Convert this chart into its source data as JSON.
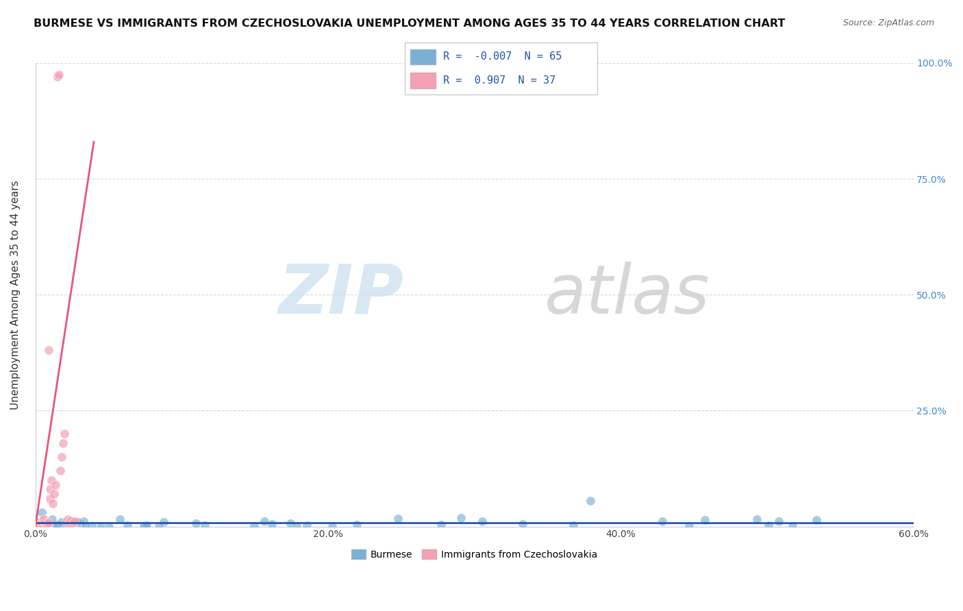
{
  "title": "BURMESE VS IMMIGRANTS FROM CZECHOSLOVAKIA UNEMPLOYMENT AMONG AGES 35 TO 44 YEARS CORRELATION CHART",
  "source": "Source: ZipAtlas.com",
  "ylabel": "Unemployment Among Ages 35 to 44 years",
  "xlim": [
    0.0,
    0.6
  ],
  "ylim": [
    0.0,
    1.0
  ],
  "xtick_labels": [
    "0.0%",
    "20.0%",
    "40.0%",
    "60.0%"
  ],
  "xtick_vals": [
    0.0,
    0.2,
    0.4,
    0.6
  ],
  "ytick_labels": [
    "25.0%",
    "50.0%",
    "75.0%",
    "100.0%"
  ],
  "ytick_vals": [
    0.25,
    0.5,
    0.75,
    1.0
  ],
  "watermark_zip": "ZIP",
  "watermark_atlas": "atlas",
  "blue_color": "#7BAFD4",
  "pink_color": "#F4A0B5",
  "blue_line_color": "#2255AA",
  "pink_line_color": "#E8547A",
  "R_blue": -0.007,
  "N_blue": 65,
  "R_pink": 0.907,
  "N_pink": 37,
  "blue_seed": 42,
  "pink_seed": 7
}
